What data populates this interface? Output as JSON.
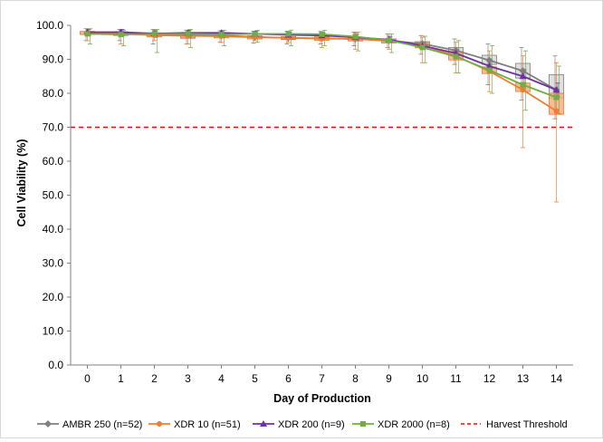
{
  "chart_data": {
    "type": "line",
    "xlabel": "Day of Production",
    "ylabel": "Cell Viability (%)",
    "ylim": [
      0,
      100
    ],
    "y_ticks": [
      "0.0",
      "10.0",
      "20.0",
      "30.0",
      "40.0",
      "50.0",
      "60.0",
      "70.0",
      "80.0",
      "90.0",
      "100.0"
    ],
    "y_tick_values": [
      0,
      10,
      20,
      30,
      40,
      50,
      60,
      70,
      80,
      90,
      100
    ],
    "x": [
      0,
      1,
      2,
      3,
      4,
      5,
      6,
      7,
      8,
      9,
      10,
      11,
      12,
      13,
      14
    ],
    "x_ticks": [
      "0",
      "1",
      "2",
      "3",
      "4",
      "5",
      "6",
      "7",
      "8",
      "9",
      "10",
      "11",
      "12",
      "13",
      "14"
    ],
    "grid": false,
    "legend_position": "bottom",
    "series": [
      {
        "name": "AMBR 250 (n=52)",
        "color": "#7f7f7f",
        "marker": "diamond",
        "values": [
          97.8,
          97.7,
          97.4,
          97.2,
          97.0,
          96.6,
          96.3,
          96.2,
          96.0,
          95.5,
          94.6,
          92.6,
          89.7,
          86.6,
          81.0
        ],
        "box_q1": [
          97.4,
          97.2,
          96.8,
          96.2,
          96.5,
          96.2,
          95.8,
          95.7,
          95.5,
          95.0,
          94.0,
          91.5,
          88.5,
          84.5,
          78.5
        ],
        "box_q3": [
          98.2,
          98.1,
          97.8,
          97.6,
          97.5,
          96.9,
          96.7,
          96.6,
          96.4,
          96.0,
          95.2,
          93.5,
          91.2,
          88.8,
          85.5
        ],
        "whisker_low": [
          95.5,
          95.5,
          94.5,
          94.5,
          95.0,
          94.8,
          94.5,
          94.5,
          94.0,
          93.5,
          91.5,
          88.5,
          82.5,
          78.0,
          72.5
        ],
        "whisker_high": [
          99.0,
          98.8,
          98.8,
          98.6,
          98.4,
          98.3,
          98.3,
          98.2,
          98.0,
          97.5,
          97.0,
          96.0,
          94.5,
          93.5,
          91.0
        ],
        "box_fill": "#d9d9d9"
      },
      {
        "name": "XDR 10 (n=51)",
        "color": "#ed7d31",
        "marker": "circle",
        "values": [
          97.8,
          97.5,
          97.1,
          96.9,
          96.8,
          96.5,
          96.3,
          96.1,
          96.0,
          95.4,
          94.2,
          91.0,
          86.5,
          81.0,
          74.8
        ],
        "box_q1": [
          97.3,
          97.0,
          96.6,
          96.3,
          96.3,
          96.0,
          95.9,
          95.6,
          95.4,
          94.8,
          93.4,
          89.8,
          85.8,
          80.5,
          73.8
        ],
        "box_q3": [
          98.2,
          97.9,
          97.6,
          97.4,
          97.2,
          96.9,
          96.7,
          96.6,
          96.4,
          95.9,
          94.9,
          92.3,
          87.8,
          83.0,
          80.0
        ],
        "whisker_low": [
          95.5,
          94.5,
          95.5,
          94.5,
          95.0,
          95.5,
          95.0,
          93.5,
          93.0,
          93.0,
          89.0,
          86.0,
          80.5,
          64.0,
          48.0
        ],
        "whisker_high": [
          99.0,
          98.5,
          98.5,
          98.5,
          98.2,
          98.0,
          98.0,
          98.0,
          97.8,
          97.0,
          96.5,
          95.0,
          92.5,
          91.0,
          89.0
        ],
        "box_fill": "#f4b183"
      },
      {
        "name": "XDR 200 (n=9)",
        "color": "#7030a0",
        "marker": "triangle",
        "values": [
          98.0,
          98.0,
          97.6,
          97.8,
          97.8,
          97.5,
          97.2,
          97.0,
          96.5,
          95.8,
          94.0,
          91.8,
          88.0,
          85.0,
          81.0
        ],
        "box_q1": null,
        "box_q3": null,
        "whisker_low": [
          97.0,
          97.0,
          96.5,
          96.5,
          96.5,
          96.5,
          96.0,
          96.0,
          95.5,
          95.0,
          93.0,
          90.5,
          86.5,
          83.0,
          79.0
        ],
        "whisker_high": [
          98.8,
          98.8,
          98.4,
          98.5,
          98.5,
          98.3,
          98.0,
          97.8,
          97.4,
          96.6,
          95.0,
          93.0,
          89.5,
          87.0,
          83.0
        ],
        "box_fill": null
      },
      {
        "name": "XDR 2000 (n=8)",
        "color": "#70ad47",
        "marker": "square",
        "values": [
          97.5,
          97.3,
          97.5,
          97.5,
          97.3,
          97.5,
          97.5,
          97.4,
          96.7,
          95.6,
          93.5,
          90.8,
          86.8,
          82.5,
          78.8
        ],
        "box_q1": null,
        "box_q3": null,
        "whisker_low": [
          94.5,
          94.0,
          92.0,
          93.5,
          94.0,
          95.0,
          94.0,
          94.0,
          92.5,
          92.0,
          89.0,
          86.0,
          80.0,
          75.0,
          74.0
        ],
        "whisker_high": [
          99.0,
          98.5,
          98.8,
          98.8,
          98.5,
          98.5,
          98.6,
          98.5,
          98.0,
          97.5,
          96.8,
          95.5,
          94.0,
          92.5,
          88.0
        ],
        "box_fill": null
      },
      {
        "name": "Harvest Threshold",
        "color": "#ff0000",
        "marker": "none",
        "dashed": true,
        "constant": 70
      }
    ]
  }
}
